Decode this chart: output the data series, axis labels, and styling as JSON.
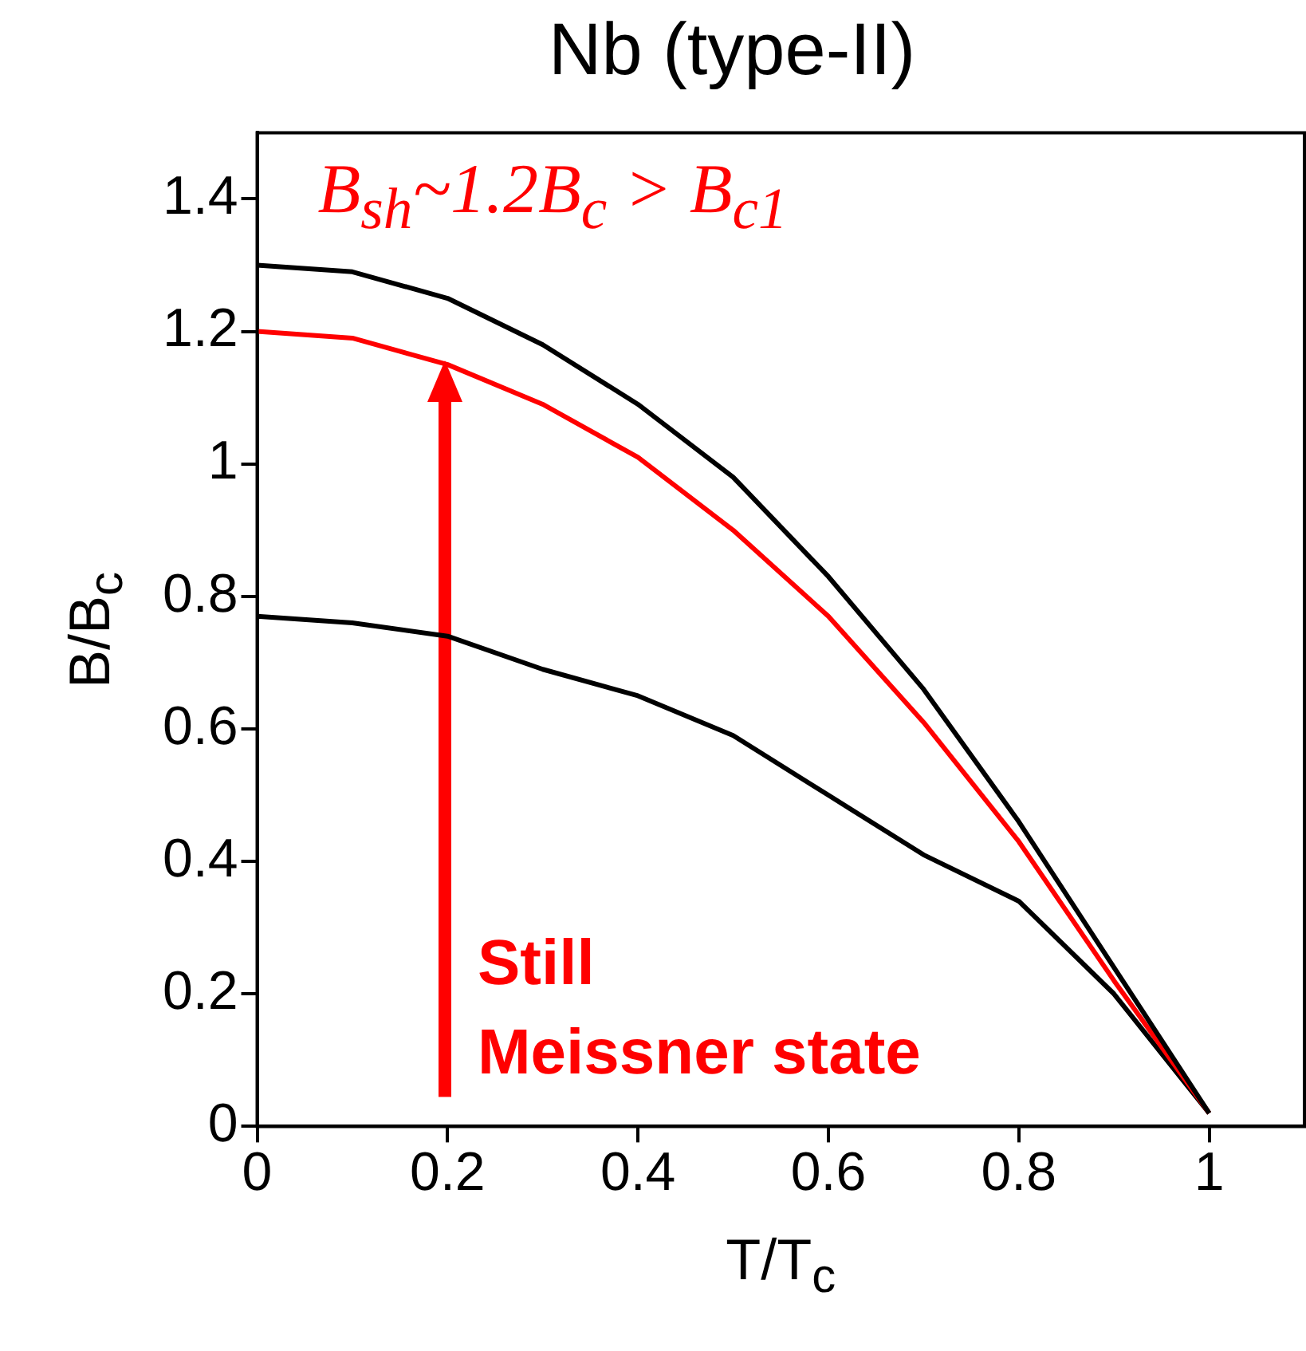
{
  "chart_data": {
    "type": "line",
    "title": "Nb (type-II)",
    "xlabel": "T/T$_{c}$",
    "ylabel": "B/B$_{c}$",
    "x": [
      0,
      0.1,
      0.2,
      0.3,
      0.4,
      0.5,
      0.6,
      0.7,
      0.8,
      0.9,
      1
    ],
    "series": [
      {
        "color": "#000000",
        "values": [
          1.3,
          1.29,
          1.25,
          1.18,
          1.09,
          0.98,
          0.83,
          0.66,
          0.46,
          0.24,
          0.02
        ]
      },
      {
        "color": "#ff0000",
        "values": [
          1.2,
          1.19,
          1.15,
          1.09,
          1.01,
          0.9,
          0.77,
          0.61,
          0.43,
          0.22,
          0.02
        ]
      },
      {
        "color": "#000000",
        "values": [
          0.77,
          0.76,
          0.74,
          0.69,
          0.65,
          0.59,
          0.5,
          0.41,
          0.34,
          0.2,
          0.02
        ]
      }
    ],
    "annotations": [
      "B$_{sh}$~1.2B$_{c}$ > B$_{c1}$",
      "Still\nMeissner state"
    ],
    "xlim": [
      0,
      1.1
    ],
    "ylim": [
      0,
      1.5
    ],
    "xticks": [
      0,
      0.2,
      0.4,
      0.6,
      0.8,
      1
    ],
    "yticks": [
      0,
      0.2,
      0.4,
      0.6,
      0.8,
      1,
      1.2,
      1.4
    ],
    "grid": false,
    "legend": false,
    "marker": "none",
    "line_style": "solid"
  }
}
